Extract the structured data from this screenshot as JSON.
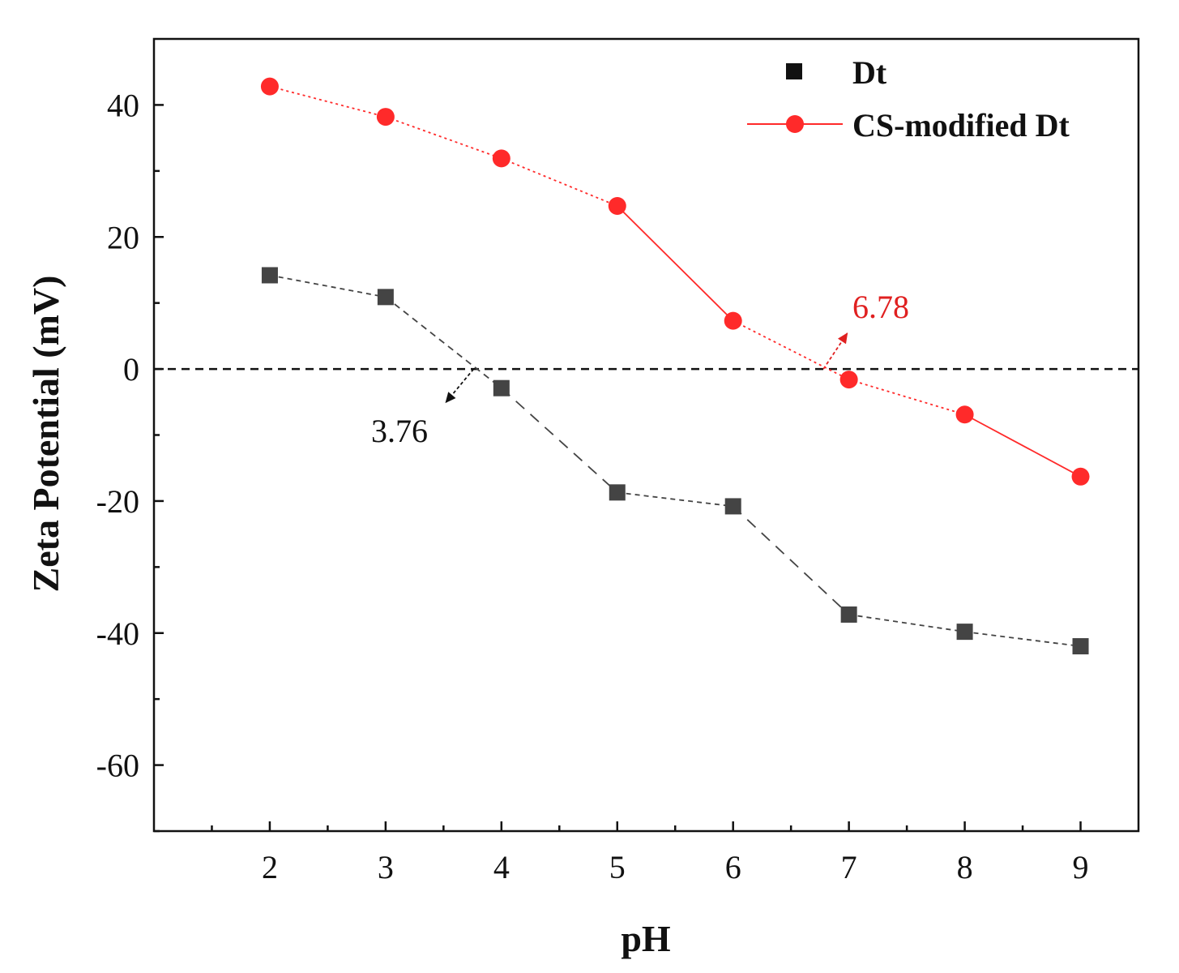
{
  "chart_data": {
    "type": "line",
    "title": "",
    "xlabel": "pH",
    "ylabel": "Zeta Potential (mV)",
    "xlim": [
      1,
      9.5
    ],
    "ylim": [
      -70,
      50
    ],
    "xticks": [
      2,
      3,
      4,
      5,
      6,
      7,
      8,
      9
    ],
    "yticks": [
      40,
      20,
      0,
      -20,
      -40,
      -60
    ],
    "x": [
      2,
      3,
      4,
      5,
      6,
      7,
      8,
      9
    ],
    "series": [
      {
        "name": "Dt",
        "marker": "square",
        "color": "#444444",
        "values": [
          14.2,
          10.9,
          -2.9,
          -18.7,
          -20.8,
          -37.2,
          -39.8,
          -42.0
        ]
      },
      {
        "name": "CS-modified Dt",
        "marker": "circle",
        "color": "#ff2a2a",
        "values": [
          42.8,
          38.2,
          31.9,
          24.7,
          7.3,
          -1.6,
          -6.9,
          -16.3
        ]
      }
    ],
    "reference_line": {
      "y": 0,
      "style": "dashed"
    },
    "annotations": [
      {
        "text": "3.76",
        "x": 3.76,
        "y": 0,
        "color": "#111111"
      },
      {
        "text": "6.78",
        "x": 6.78,
        "y": 0,
        "color": "#e02020"
      }
    ],
    "legend_position": "top-right"
  }
}
